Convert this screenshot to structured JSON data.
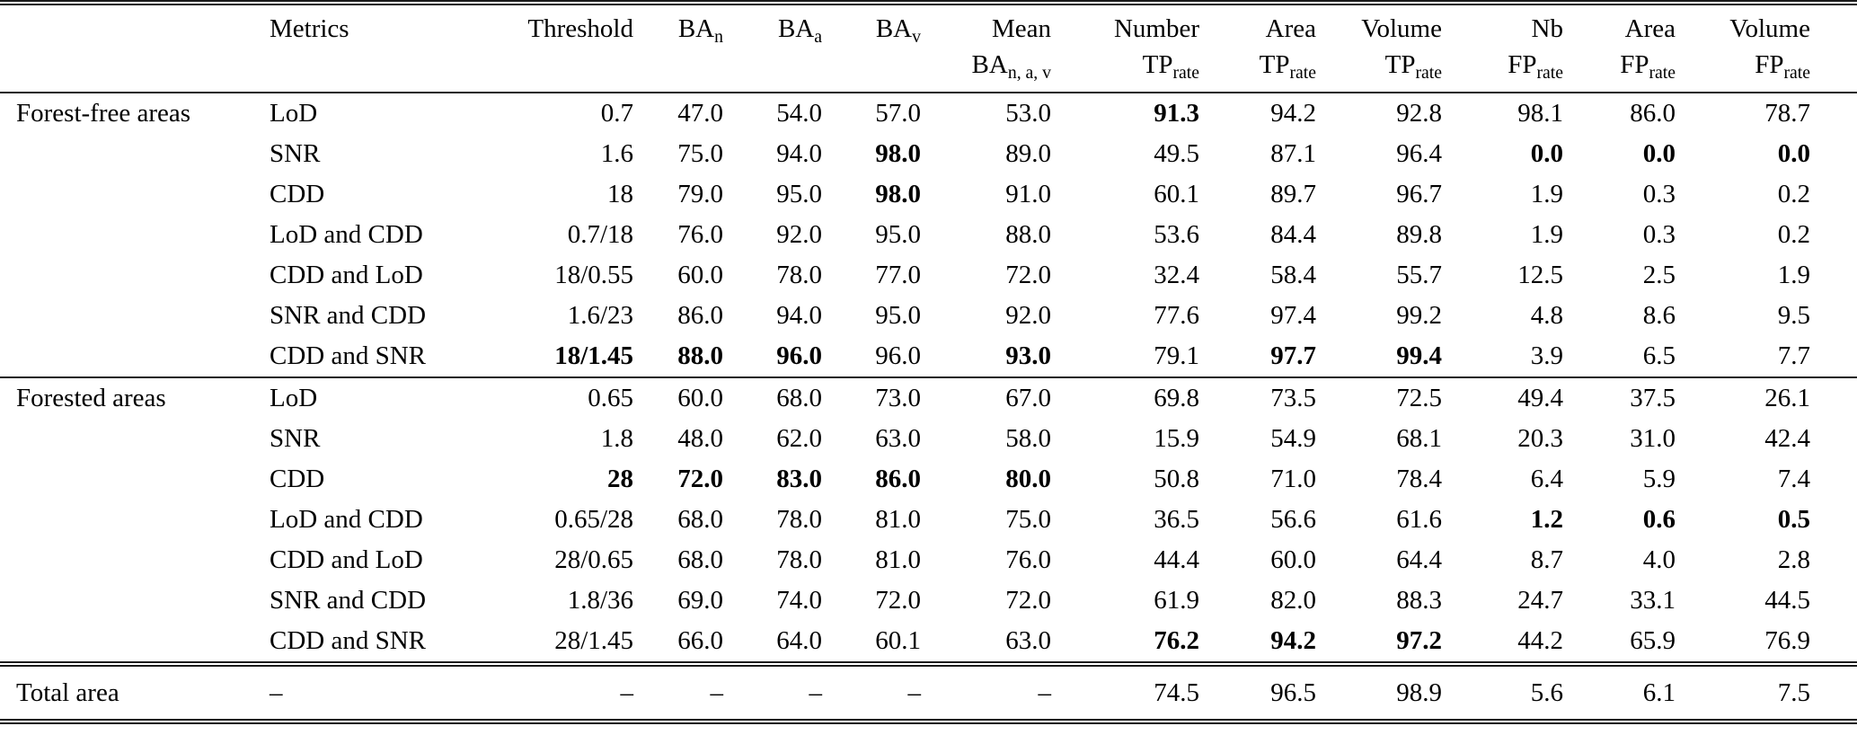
{
  "style": {
    "text_color": "#000000",
    "background_color": "#ffffff",
    "rule_color": "#1a1a1a"
  },
  "table": {
    "header": {
      "metrics": "Metrics",
      "threshold": "Threshold",
      "ba_n": {
        "main": "BA",
        "sub": "n"
      },
      "ba_a": {
        "main": "BA",
        "sub": "a"
      },
      "ba_v": {
        "main": "BA",
        "sub": "v"
      },
      "mean_ba": {
        "line1": "Mean",
        "main": "BA",
        "sub": "n, a, v"
      },
      "number_tp": {
        "line1": "Number",
        "main": "TP",
        "sub": "rate"
      },
      "area_tp": {
        "line1": "Area",
        "main": "TP",
        "sub": "rate"
      },
      "volume_tp": {
        "line1": "Volume",
        "main": "TP",
        "sub": "rate"
      },
      "nb_fp": {
        "line1": "Nb",
        "main": "FP",
        "sub": "rate"
      },
      "area_fp": {
        "line1": "Area",
        "main": "FP",
        "sub": "rate"
      },
      "volume_fp": {
        "line1": "Volume",
        "main": "FP",
        "sub": "rate"
      }
    },
    "value_keys": [
      "threshold",
      "ba_n",
      "ba_a",
      "ba_v",
      "mean_ba",
      "number_tp",
      "area_tp",
      "volume_tp",
      "nb_fp",
      "area_fp",
      "volume_fp"
    ],
    "groups": [
      {
        "label": "Forest-free areas",
        "rows": [
          {
            "metrics": "LoD",
            "values": [
              "0.7",
              "47.0",
              "54.0",
              "57.0",
              "53.0",
              "91.3",
              "94.2",
              "92.8",
              "98.1",
              "86.0",
              "78.7"
            ],
            "bold": [
              5
            ]
          },
          {
            "metrics": "SNR",
            "values": [
              "1.6",
              "75.0",
              "94.0",
              "98.0",
              "89.0",
              "49.5",
              "87.1",
              "96.4",
              "0.0",
              "0.0",
              "0.0"
            ],
            "bold": [
              3,
              8,
              9,
              10
            ]
          },
          {
            "metrics": "CDD",
            "values": [
              "18",
              "79.0",
              "95.0",
              "98.0",
              "91.0",
              "60.1",
              "89.7",
              "96.7",
              "1.9",
              "0.3",
              "0.2"
            ],
            "bold": [
              3
            ]
          },
          {
            "metrics": "LoD and CDD",
            "values": [
              "0.7/18",
              "76.0",
              "92.0",
              "95.0",
              "88.0",
              "53.6",
              "84.4",
              "89.8",
              "1.9",
              "0.3",
              "0.2"
            ],
            "bold": []
          },
          {
            "metrics": "CDD and LoD",
            "values": [
              "18/0.55",
              "60.0",
              "78.0",
              "77.0",
              "72.0",
              "32.4",
              "58.4",
              "55.7",
              "12.5",
              "2.5",
              "1.9"
            ],
            "bold": []
          },
          {
            "metrics": "SNR and CDD",
            "values": [
              "1.6/23",
              "86.0",
              "94.0",
              "95.0",
              "92.0",
              "77.6",
              "97.4",
              "99.2",
              "4.8",
              "8.6",
              "9.5"
            ],
            "bold": []
          },
          {
            "metrics": "CDD and SNR",
            "values": [
              "18/1.45",
              "88.0",
              "96.0",
              "96.0",
              "93.0",
              "79.1",
              "97.7",
              "99.4",
              "3.9",
              "6.5",
              "7.7"
            ],
            "bold": [
              0,
              1,
              2,
              4,
              6,
              7
            ]
          }
        ]
      },
      {
        "label": "Forested areas",
        "rows": [
          {
            "metrics": "LoD",
            "values": [
              "0.65",
              "60.0",
              "68.0",
              "73.0",
              "67.0",
              "69.8",
              "73.5",
              "72.5",
              "49.4",
              "37.5",
              "26.1"
            ],
            "bold": []
          },
          {
            "metrics": "SNR",
            "values": [
              "1.8",
              "48.0",
              "62.0",
              "63.0",
              "58.0",
              "15.9",
              "54.9",
              "68.1",
              "20.3",
              "31.0",
              "42.4"
            ],
            "bold": []
          },
          {
            "metrics": "CDD",
            "values": [
              "28",
              "72.0",
              "83.0",
              "86.0",
              "80.0",
              "50.8",
              "71.0",
              "78.4",
              "6.4",
              "5.9",
              "7.4"
            ],
            "bold": [
              0,
              1,
              2,
              3,
              4
            ]
          },
          {
            "metrics": "LoD and CDD",
            "values": [
              "0.65/28",
              "68.0",
              "78.0",
              "81.0",
              "75.0",
              "36.5",
              "56.6",
              "61.6",
              "1.2",
              "0.6",
              "0.5"
            ],
            "bold": [
              8,
              9,
              10
            ]
          },
          {
            "metrics": "CDD and LoD",
            "values": [
              "28/0.65",
              "68.0",
              "78.0",
              "81.0",
              "76.0",
              "44.4",
              "60.0",
              "64.4",
              "8.7",
              "4.0",
              "2.8"
            ],
            "bold": []
          },
          {
            "metrics": "SNR and CDD",
            "values": [
              "1.8/36",
              "69.0",
              "74.0",
              "72.0",
              "72.0",
              "61.9",
              "82.0",
              "88.3",
              "24.7",
              "33.1",
              "44.5"
            ],
            "bold": []
          },
          {
            "metrics": "CDD and SNR",
            "values": [
              "28/1.45",
              "66.0",
              "64.0",
              "60.1",
              "63.0",
              "76.2",
              "94.2",
              "97.2",
              "44.2",
              "65.9",
              "76.9"
            ],
            "bold": [
              5,
              6,
              7
            ]
          }
        ]
      },
      {
        "label": "Total area",
        "rows": [
          {
            "metrics": "–",
            "values": [
              "–",
              "–",
              "–",
              "–",
              "–",
              "74.5",
              "96.5",
              "98.9",
              "5.6",
              "6.1",
              "7.5"
            ],
            "bold": []
          }
        ]
      }
    ]
  }
}
